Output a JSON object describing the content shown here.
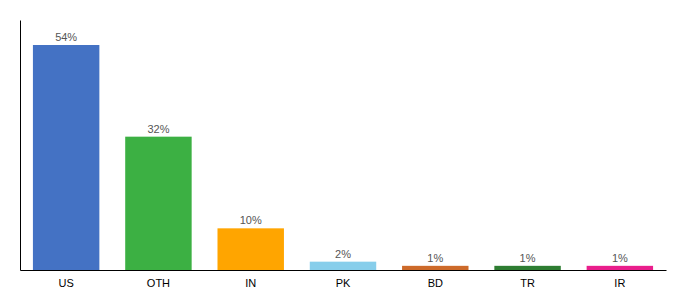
{
  "chart_data": {
    "type": "bar",
    "categories": [
      "US",
      "OTH",
      "IN",
      "PK",
      "BD",
      "TR",
      "IR"
    ],
    "values": [
      54,
      32,
      10,
      2,
      1,
      1,
      1
    ],
    "value_labels": [
      "54%",
      "32%",
      "10%",
      "2%",
      "1%",
      "1%",
      "1%"
    ],
    "colors": [
      "#4472c4",
      "#3cb043",
      "#ffa500",
      "#87ceeb",
      "#cd6a2a",
      "#2e7d32",
      "#e91e8c"
    ],
    "ylim": [
      0,
      60
    ],
    "grid": false,
    "data_labels": true,
    "tick_labels": "x"
  }
}
